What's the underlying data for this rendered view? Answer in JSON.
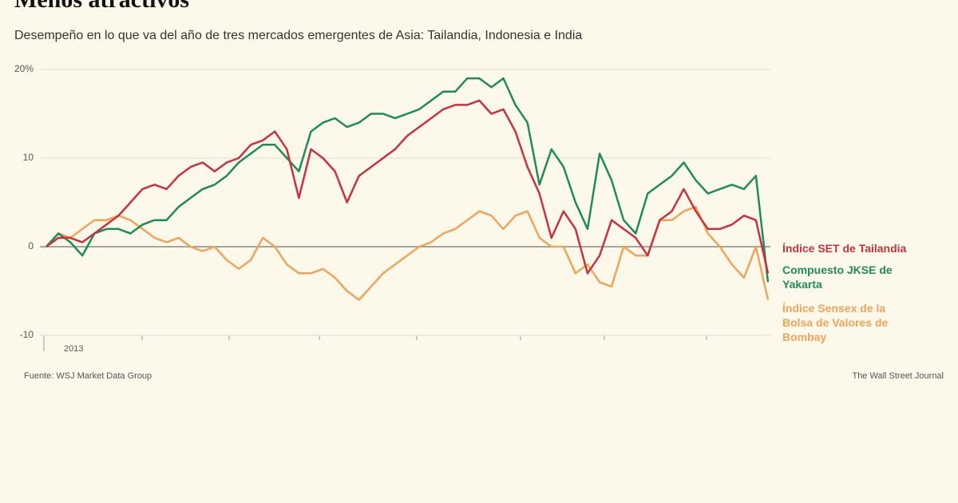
{
  "chart_data": {
    "type": "line",
    "title": "Menos atractivos",
    "subtitle": "Desempeño en lo que va del año de tres mercados emergentes de Asia: Tailandia, Indonesia e India",
    "x_label": "2013",
    "ylim": [
      -10,
      20
    ],
    "yticks": [
      {
        "value": 20,
        "label": "20%"
      },
      10,
      0,
      -10
    ],
    "grid": true,
    "series": [
      {
        "name": "Índice SET de Tailandia",
        "color": "#c8323c",
        "values": [
          0,
          1,
          1,
          0.5,
          1.5,
          2.5,
          3.5,
          5,
          6.5,
          7,
          6.5,
          8,
          9,
          9.5,
          8.5,
          9.5,
          10,
          11.5,
          12,
          13,
          11,
          5.5,
          11,
          10,
          8.5,
          5,
          8,
          9,
          10,
          11,
          12.5,
          13.5,
          14.5,
          15.5,
          16,
          16,
          16.5,
          15,
          15.5,
          13,
          9,
          6,
          1,
          4,
          2,
          -3,
          -1,
          3,
          2,
          1,
          -1,
          3,
          4,
          6.5,
          4,
          2,
          2,
          2.5,
          3.5,
          3,
          -3
        ]
      },
      {
        "name": "Compuesto JKSE de Yakarta",
        "color": "#1e8c5a",
        "values": [
          0,
          1.5,
          0.5,
          -1,
          1.5,
          2,
          2,
          1.5,
          2.5,
          3,
          3,
          4.5,
          5.5,
          6.5,
          7,
          8,
          9.5,
          10.5,
          11.5,
          11.5,
          10,
          8.5,
          13,
          14,
          14.5,
          13.5,
          14,
          15,
          15,
          14.5,
          15,
          15.5,
          16.5,
          17.5,
          17.5,
          19,
          19,
          18,
          19,
          16,
          14,
          7,
          11,
          9,
          5,
          2,
          10.5,
          7.5,
          3,
          1.5,
          6,
          7,
          8,
          9.5,
          7.5,
          6,
          6.5,
          7,
          6.5,
          8,
          -4
        ]
      },
      {
        "name": "Índice Sensex de la Bolsa de Valores de Bombay",
        "color": "#f0a45a",
        "values": [
          0,
          1.5,
          1,
          2,
          3,
          3,
          3.5,
          3,
          2,
          1,
          0.5,
          1,
          0,
          -0.5,
          0,
          -1.5,
          -2.5,
          -1.5,
          1,
          0,
          -2,
          -3,
          -3,
          -2.5,
          -3.5,
          -5,
          -6,
          -4.5,
          -3,
          -2,
          -1,
          0,
          0.5,
          1.5,
          2,
          3,
          4,
          3.5,
          2,
          3.5,
          4,
          1,
          0,
          0,
          -3,
          -2,
          -4,
          -4.5,
          0,
          -1,
          -1,
          3,
          3,
          4,
          4.5,
          1.5,
          0,
          -2,
          -3.5,
          0,
          -6
        ]
      }
    ],
    "source": "Fuente: WSJ Market Data Group",
    "credit": "The Wall Street Journal"
  }
}
